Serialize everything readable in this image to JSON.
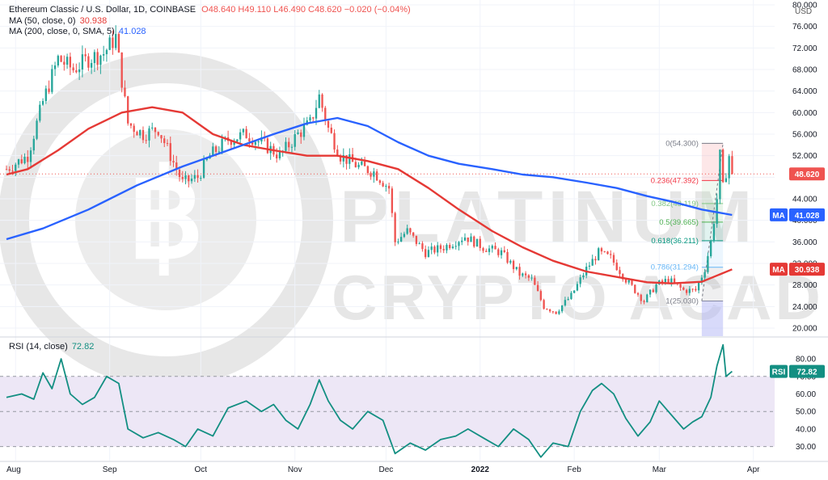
{
  "header": {
    "symbol": "Ethereum Classic / U.S. Dollar, 1D, COINBASE",
    "ohlc": "O48.640 H49.110 L46.490 C48.620 −0.020 (−0.04%)",
    "ma50_label": "MA (50, close, 0)",
    "ma50_value": "30.938",
    "ma200_label": "MA (200, close, 0, SMA, 5)",
    "ma200_value": "41.028",
    "rsi_label": "RSI (14, close)",
    "rsi_value": "72.82",
    "currency": "USD"
  },
  "watermark": {
    "line1": "PLATINUM",
    "line2": "CRYPTO ACADEMY"
  },
  "colors": {
    "up": "#26a69a",
    "down": "#ef5350",
    "ma50": "#e53935",
    "ma200": "#2962ff",
    "rsi": "#138f82",
    "rsi_band": "#ede7f6"
  },
  "chart_data": [
    {
      "type": "candlestick",
      "title": "Ethereum Classic / U.S. Dollar, 1D, COINBASE",
      "ylabel": "USD",
      "ylim": [
        18.5,
        80
      ],
      "y_ticks": [
        20,
        24,
        28,
        32,
        36,
        40,
        44,
        48,
        52,
        56,
        60,
        64,
        68,
        72,
        76,
        80
      ],
      "y_tick_labels": [
        "20.000",
        "24.000",
        "28.000",
        "32.000",
        "36.000",
        "40.000",
        "44.000",
        "48.000",
        "52.000",
        "56.000",
        "60.000",
        "64.000",
        "68.000",
        "72.000",
        "76.000",
        "80.000"
      ],
      "x_ticks": [
        {
          "label": "Aug",
          "x": "2021-08-01"
        },
        {
          "label": "Sep",
          "x": "2021-09-01"
        },
        {
          "label": "Oct",
          "x": "2021-10-01"
        },
        {
          "label": "Nov",
          "x": "2021-11-01"
        },
        {
          "label": "Dec",
          "x": "2021-12-01"
        },
        {
          "label": "2022",
          "x": "2022-01-01"
        },
        {
          "label": "Feb",
          "x": "2022-02-01"
        },
        {
          "label": "Mar",
          "x": "2022-03-01"
        },
        {
          "label": "Apr",
          "x": "2022-04-01"
        }
      ],
      "last_close": 48.62,
      "last_close_label": "48.620",
      "close_trend": [
        [
          "2021-07-29",
          49.5
        ],
        [
          "2021-08-05",
          52
        ],
        [
          "2021-08-10",
          62
        ],
        [
          "2021-08-15",
          70
        ],
        [
          "2021-08-20",
          68
        ],
        [
          "2021-08-25",
          70
        ],
        [
          "2021-08-30",
          71
        ],
        [
          "2021-09-03",
          74
        ],
        [
          "2021-09-07",
          58
        ],
        [
          "2021-09-12",
          56
        ],
        [
          "2021-09-17",
          57
        ],
        [
          "2021-09-21",
          52
        ],
        [
          "2021-09-25",
          47
        ],
        [
          "2021-09-30",
          48
        ],
        [
          "2021-10-04",
          52
        ],
        [
          "2021-10-10",
          55
        ],
        [
          "2021-10-16",
          56
        ],
        [
          "2021-10-22",
          54
        ],
        [
          "2021-10-27",
          52
        ],
        [
          "2021-11-02",
          56
        ],
        [
          "2021-11-06",
          58
        ],
        [
          "2021-11-09",
          63
        ],
        [
          "2021-11-12",
          57
        ],
        [
          "2021-11-16",
          52
        ],
        [
          "2021-11-22",
          50
        ],
        [
          "2021-11-27",
          49
        ],
        [
          "2021-12-02",
          46
        ],
        [
          "2021-12-04",
          36
        ],
        [
          "2021-12-08",
          38
        ],
        [
          "2021-12-14",
          34
        ],
        [
          "2021-12-20",
          35
        ],
        [
          "2021-12-27",
          37
        ],
        [
          "2022-01-02",
          35
        ],
        [
          "2022-01-08",
          34
        ],
        [
          "2022-01-14",
          30
        ],
        [
          "2022-01-18",
          29
        ],
        [
          "2022-01-22",
          24
        ],
        [
          "2022-01-26",
          23
        ],
        [
          "2022-01-31",
          26
        ],
        [
          "2022-02-05",
          31
        ],
        [
          "2022-02-09",
          34
        ],
        [
          "2022-02-13",
          33
        ],
        [
          "2022-02-18",
          29
        ],
        [
          "2022-02-24",
          25
        ],
        [
          "2022-02-28",
          28
        ],
        [
          "2022-03-04",
          29
        ],
        [
          "2022-03-09",
          27
        ],
        [
          "2022-03-13",
          27
        ],
        [
          "2022-03-16",
          31
        ],
        [
          "2022-03-18",
          36
        ],
        [
          "2022-03-20",
          44
        ],
        [
          "2022-03-21",
          52
        ],
        [
          "2022-03-22",
          46
        ],
        [
          "2022-03-24",
          52
        ],
        [
          "2022-03-25",
          48.62
        ]
      ],
      "series": [
        {
          "name": "MA (50, close, 0)",
          "points": [
            [
              "2021-07-29",
              48.5
            ],
            [
              "2021-08-05",
              49.5
            ],
            [
              "2021-08-15",
              53
            ],
            [
              "2021-08-25",
              57
            ],
            [
              "2021-09-05",
              60
            ],
            [
              "2021-09-15",
              61
            ],
            [
              "2021-09-25",
              60
            ],
            [
              "2021-10-05",
              56
            ],
            [
              "2021-10-15",
              54
            ],
            [
              "2021-10-25",
              53
            ],
            [
              "2021-11-05",
              52
            ],
            [
              "2021-11-15",
              52
            ],
            [
              "2021-11-25",
              51
            ],
            [
              "2021-12-05",
              49.5
            ],
            [
              "2021-12-15",
              46
            ],
            [
              "2021-12-25",
              42
            ],
            [
              "2022-01-05",
              38
            ],
            [
              "2022-01-15",
              35
            ],
            [
              "2022-01-25",
              32.5
            ],
            [
              "2022-02-05",
              30.5
            ],
            [
              "2022-02-15",
              29.5
            ],
            [
              "2022-02-25",
              28.5
            ],
            [
              "2022-03-05",
              28.3
            ],
            [
              "2022-03-15",
              28.6
            ],
            [
              "2022-03-25",
              30.9
            ]
          ]
        },
        {
          "name": "MA (200, close, 0, SMA, 5)",
          "points": [
            [
              "2021-07-29",
              36.5
            ],
            [
              "2021-08-10",
              38.5
            ],
            [
              "2021-08-25",
              42
            ],
            [
              "2021-09-10",
              46.5
            ],
            [
              "2021-09-25",
              50
            ],
            [
              "2021-10-10",
              53
            ],
            [
              "2021-10-25",
              56
            ],
            [
              "2021-11-05",
              58
            ],
            [
              "2021-11-15",
              59
            ],
            [
              "2021-11-25",
              57.5
            ],
            [
              "2021-12-05",
              54.5
            ],
            [
              "2021-12-15",
              52
            ],
            [
              "2021-12-25",
              50.5
            ],
            [
              "2022-01-05",
              49.5
            ],
            [
              "2022-01-15",
              48.5
            ],
            [
              "2022-01-25",
              48
            ],
            [
              "2022-02-05",
              47
            ],
            [
              "2022-02-15",
              46
            ],
            [
              "2022-02-25",
              44.5
            ],
            [
              "2022-03-05",
              43.5
            ],
            [
              "2022-03-15",
              42
            ],
            [
              "2022-03-25",
              41
            ]
          ]
        }
      ],
      "fibonacci": {
        "start_date": "2022-03-15",
        "end_date": "2022-03-22",
        "levels": [
          {
            "ratio": "0",
            "price": 54.3,
            "label": "0(54.300)"
          },
          {
            "ratio": "0.236",
            "price": 47.392,
            "label": "0.236(47.392)"
          },
          {
            "ratio": "0.382",
            "price": 43.119,
            "label": "0.382(43.119)"
          },
          {
            "ratio": "0.5",
            "price": 39.665,
            "label": "0.5(39.665)"
          },
          {
            "ratio": "0.618",
            "price": 36.211,
            "label": "0.618(36.211)"
          },
          {
            "ratio": "0.786",
            "price": 31.294,
            "label": "0.786(31.294)"
          },
          {
            "ratio": "1",
            "price": 25.03,
            "label": "1(25.030)"
          }
        ]
      },
      "price_badges": [
        {
          "text": "48.620",
          "value": 48.62
        },
        {
          "tag": "MA",
          "text": "41.028",
          "value": 41.028
        },
        {
          "tag": "MA",
          "text": "30.938",
          "value": 30.938
        }
      ]
    },
    {
      "type": "line",
      "title": "RSI (14, close)",
      "ylim": [
        22,
        92
      ],
      "y_ticks": [
        30,
        40,
        50,
        60,
        70,
        80
      ],
      "y_tick_labels": [
        "30.00",
        "40.00",
        "50.00",
        "60.00",
        "70.00",
        "80.00"
      ],
      "band": [
        30,
        70
      ],
      "midline": 50,
      "last_value": 72.82,
      "points": [
        [
          "2021-07-29",
          58
        ],
        [
          "2021-08-03",
          60
        ],
        [
          "2021-08-07",
          57
        ],
        [
          "2021-08-10",
          72
        ],
        [
          "2021-08-13",
          63
        ],
        [
          "2021-08-16",
          80
        ],
        [
          "2021-08-19",
          60
        ],
        [
          "2021-08-23",
          54
        ],
        [
          "2021-08-27",
          58
        ],
        [
          "2021-08-31",
          70
        ],
        [
          "2021-09-04",
          66
        ],
        [
          "2021-09-07",
          40
        ],
        [
          "2021-09-12",
          35
        ],
        [
          "2021-09-17",
          38
        ],
        [
          "2021-09-22",
          34
        ],
        [
          "2021-09-26",
          30
        ],
        [
          "2021-09-30",
          40
        ],
        [
          "2021-10-05",
          36
        ],
        [
          "2021-10-10",
          52
        ],
        [
          "2021-10-16",
          56
        ],
        [
          "2021-10-21",
          50
        ],
        [
          "2021-10-25",
          54
        ],
        [
          "2021-10-29",
          45
        ],
        [
          "2021-11-02",
          40
        ],
        [
          "2021-11-06",
          54
        ],
        [
          "2021-11-09",
          68
        ],
        [
          "2021-11-12",
          56
        ],
        [
          "2021-11-16",
          45
        ],
        [
          "2021-11-20",
          40
        ],
        [
          "2021-11-25",
          50
        ],
        [
          "2021-11-30",
          45
        ],
        [
          "2021-12-04",
          26
        ],
        [
          "2021-12-09",
          32
        ],
        [
          "2021-12-14",
          28
        ],
        [
          "2021-12-19",
          34
        ],
        [
          "2021-12-24",
          36
        ],
        [
          "2021-12-28",
          40
        ],
        [
          "2022-01-02",
          35
        ],
        [
          "2022-01-07",
          30
        ],
        [
          "2022-01-12",
          40
        ],
        [
          "2022-01-17",
          34
        ],
        [
          "2022-01-21",
          24
        ],
        [
          "2022-01-25",
          32
        ],
        [
          "2022-01-30",
          30
        ],
        [
          "2022-02-03",
          50
        ],
        [
          "2022-02-07",
          62
        ],
        [
          "2022-02-10",
          66
        ],
        [
          "2022-02-14",
          60
        ],
        [
          "2022-02-18",
          46
        ],
        [
          "2022-02-22",
          36
        ],
        [
          "2022-02-26",
          44
        ],
        [
          "2022-03-01",
          56
        ],
        [
          "2022-03-05",
          48
        ],
        [
          "2022-03-09",
          40
        ],
        [
          "2022-03-12",
          44
        ],
        [
          "2022-03-15",
          47
        ],
        [
          "2022-03-18",
          58
        ],
        [
          "2022-03-20",
          76
        ],
        [
          "2022-03-22",
          88
        ],
        [
          "2022-03-23",
          70
        ],
        [
          "2022-03-25",
          72.82
        ]
      ]
    }
  ]
}
